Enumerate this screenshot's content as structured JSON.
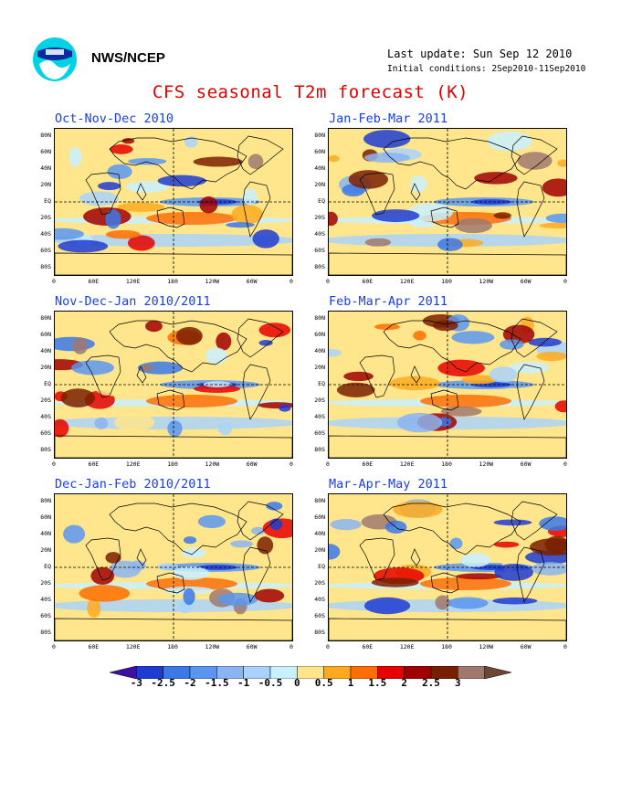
{
  "header": {
    "agency": "NWS/NCEP",
    "last_update": "Last update: Sun Sep 12 2010",
    "initial_conditions": "Initial conditions: 2Sep2010-11Sep2010",
    "title": "CFS seasonal T2m forecast (K)"
  },
  "panels": [
    {
      "title": "Oct-Nov-Dec 2010"
    },
    {
      "title": "Jan-Feb-Mar 2011"
    },
    {
      "title": "Nov-Dec-Jan 2010/2011"
    },
    {
      "title": "Feb-Mar-Apr 2011"
    },
    {
      "title": "Dec-Jan-Feb 2010/2011"
    },
    {
      "title": "Mar-Apr-May 2011"
    }
  ],
  "axes": {
    "lat_labels": [
      "80N",
      "60N",
      "40N",
      "20N",
      "EQ",
      "20S",
      "40S",
      "60S",
      "80S"
    ],
    "lon_labels": [
      "0",
      "60E",
      "120E",
      "180",
      "120W",
      "60W",
      "0"
    ]
  },
  "legend": {
    "labels": [
      "-3",
      "-2.5",
      "-2",
      "-1.5",
      "-1",
      "-0.5",
      "0",
      "0.5",
      "1",
      "1.5",
      "2",
      "2.5",
      "3"
    ],
    "colors": [
      "#3c10a0",
      "#1e3cd2",
      "#3c78e8",
      "#5a96f0",
      "#8cb4f0",
      "#aad2fa",
      "#c8f0ff",
      "#ffe68c",
      "#ffaa1e",
      "#ff6e00",
      "#e60000",
      "#a00000",
      "#7a1e00",
      "#a0786e",
      "#6e4632"
    ]
  }
}
